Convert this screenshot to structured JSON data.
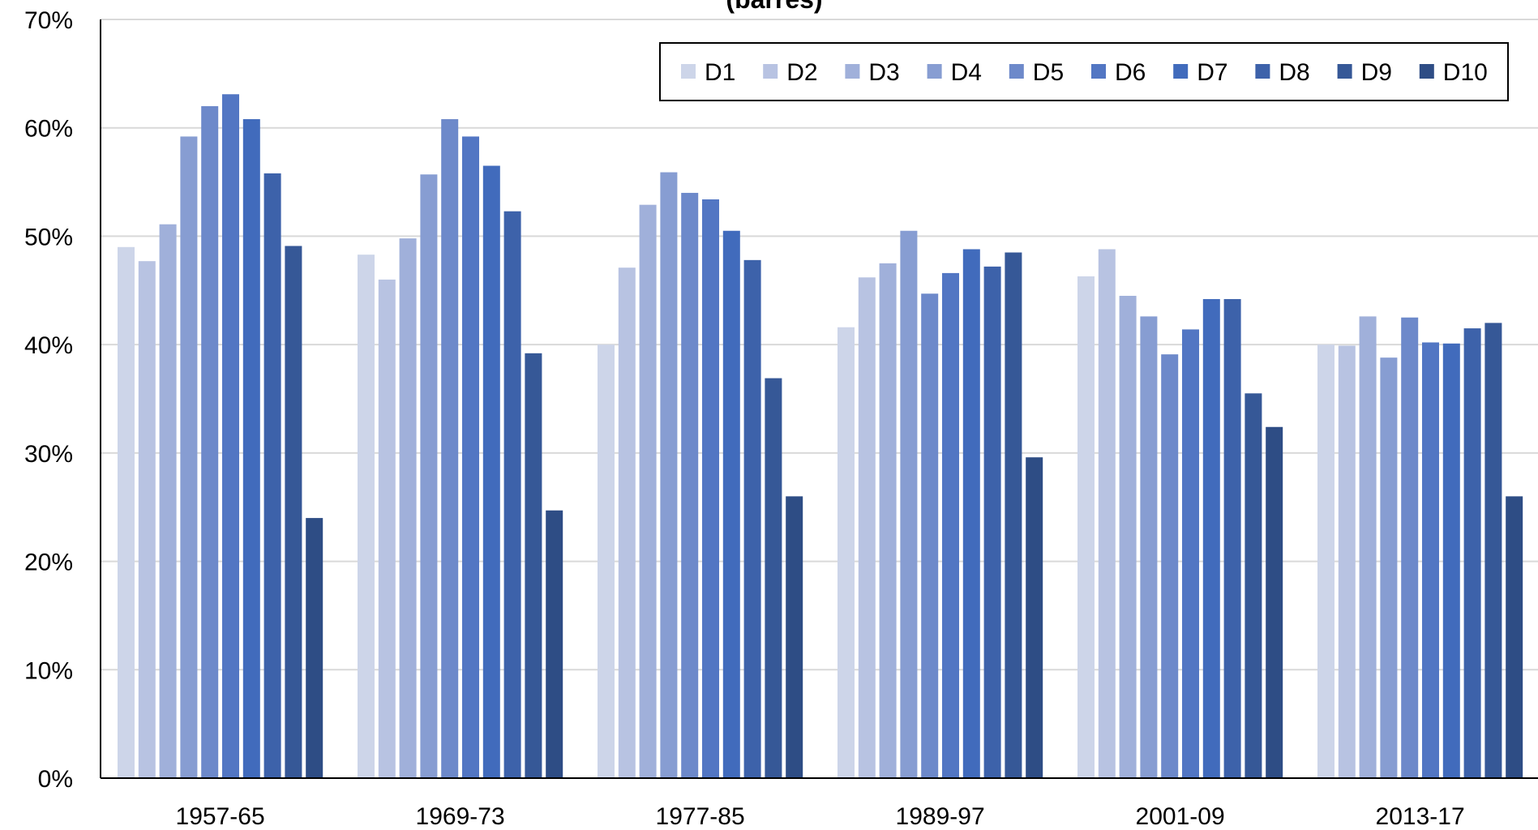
{
  "chart_data": {
    "type": "bar",
    "title": "(barres)",
    "xlabel": "",
    "ylabel": "",
    "ylim": [
      0,
      70
    ],
    "y_ticks": [
      "0%",
      "10%",
      "20%",
      "30%",
      "40%",
      "50%",
      "60%",
      "70%"
    ],
    "grid": true,
    "legend_position": "top-right",
    "categories": [
      "1957-65",
      "1969-73",
      "1977-85",
      "1989-97",
      "2001-09",
      "2013-17"
    ],
    "series": [
      {
        "name": "D1",
        "color": "#CDD5E9",
        "values": [
          49.0,
          48.3,
          40.0,
          41.6,
          46.3,
          40.0
        ]
      },
      {
        "name": "D2",
        "color": "#B8C3E2",
        "values": [
          47.7,
          46.0,
          47.1,
          46.2,
          48.8,
          39.9
        ]
      },
      {
        "name": "D3",
        "color": "#A0B0DA",
        "values": [
          51.1,
          49.8,
          52.9,
          47.5,
          44.5,
          42.6
        ]
      },
      {
        "name": "D4",
        "color": "#879DD2",
        "values": [
          59.2,
          55.7,
          55.9,
          50.5,
          42.6,
          38.8
        ]
      },
      {
        "name": "D5",
        "color": "#6D89CA",
        "values": [
          62.0,
          60.8,
          54.0,
          44.7,
          39.1,
          42.5
        ]
      },
      {
        "name": "D6",
        "color": "#5276C3",
        "values": [
          63.1,
          59.2,
          53.4,
          46.6,
          41.4,
          40.2
        ]
      },
      {
        "name": "D7",
        "color": "#416BBC",
        "values": [
          60.8,
          56.5,
          50.5,
          48.8,
          44.2,
          40.1
        ]
      },
      {
        "name": "D8",
        "color": "#3D62AA",
        "values": [
          55.8,
          52.3,
          47.8,
          47.2,
          44.2,
          41.5
        ]
      },
      {
        "name": "D9",
        "color": "#365897",
        "values": [
          49.1,
          39.2,
          36.9,
          48.5,
          35.5,
          42.0
        ]
      },
      {
        "name": "D10",
        "color": "#2E4D85",
        "values": [
          24.0,
          24.7,
          26.0,
          29.6,
          32.4,
          26.0
        ]
      }
    ]
  }
}
